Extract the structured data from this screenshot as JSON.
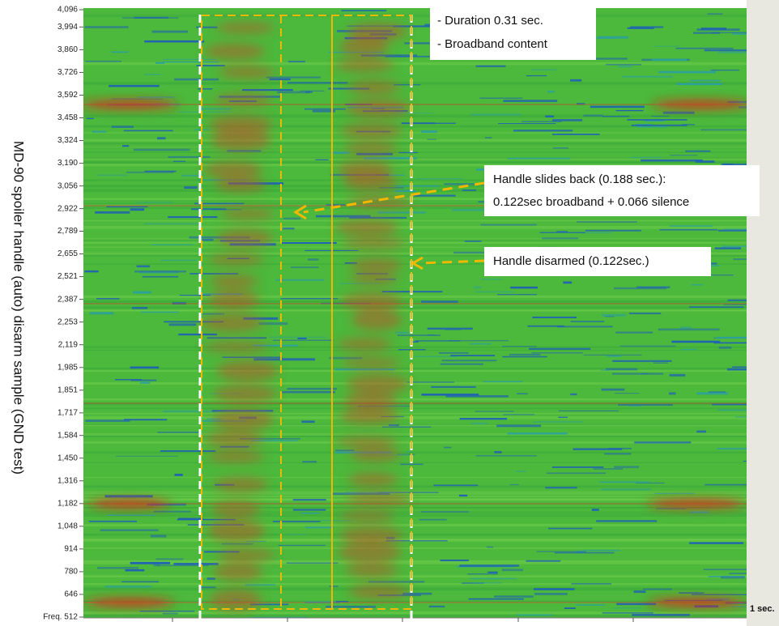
{
  "chart_data": {
    "type": "spectrogram",
    "ylabel": "MD-90 spoiler handle (auto) disarm sample  (GND test)",
    "xlabel": "1 sec.",
    "ylim": [
      512,
      4096
    ],
    "yticks": [
      {
        "value": 4096,
        "label": "4,096"
      },
      {
        "value": 3994,
        "label": "3,994"
      },
      {
        "value": 3860,
        "label": "3,860"
      },
      {
        "value": 3726,
        "label": "3,726"
      },
      {
        "value": 3592,
        "label": "3,592"
      },
      {
        "value": 3458,
        "label": "3,458"
      },
      {
        "value": 3324,
        "label": "3,324"
      },
      {
        "value": 3190,
        "label": "3,190"
      },
      {
        "value": 3056,
        "label": "3,056"
      },
      {
        "value": 2922,
        "label": "2,922"
      },
      {
        "value": 2789,
        "label": "2,789"
      },
      {
        "value": 2655,
        "label": "2,655"
      },
      {
        "value": 2521,
        "label": "2,521"
      },
      {
        "value": 2387,
        "label": "2,387"
      },
      {
        "value": 2253,
        "label": "2,253"
      },
      {
        "value": 2119,
        "label": "2,119"
      },
      {
        "value": 1985,
        "label": "1,985"
      },
      {
        "value": 1851,
        "label": "1,851"
      },
      {
        "value": 1717,
        "label": "1,717"
      },
      {
        "value": 1584,
        "label": "1,584"
      },
      {
        "value": 1450,
        "label": "1,450"
      },
      {
        "value": 1316,
        "label": "1,316"
      },
      {
        "value": 1182,
        "label": "1,182"
      },
      {
        "value": 1048,
        "label": "1,048"
      },
      {
        "value": 914,
        "label": "914"
      },
      {
        "value": 780,
        "label": "780"
      },
      {
        "value": 646,
        "label": "646"
      },
      {
        "value": 512,
        "label": "Freq. 512"
      }
    ],
    "annotations": [
      "- Duration 0.31 sec.",
      "- Broadband content",
      "Handle slides back (0.188 sec.):",
      "0.122sec broadband + 0.066 silence",
      "Handle disarmed (0.122sec.)"
    ]
  }
}
